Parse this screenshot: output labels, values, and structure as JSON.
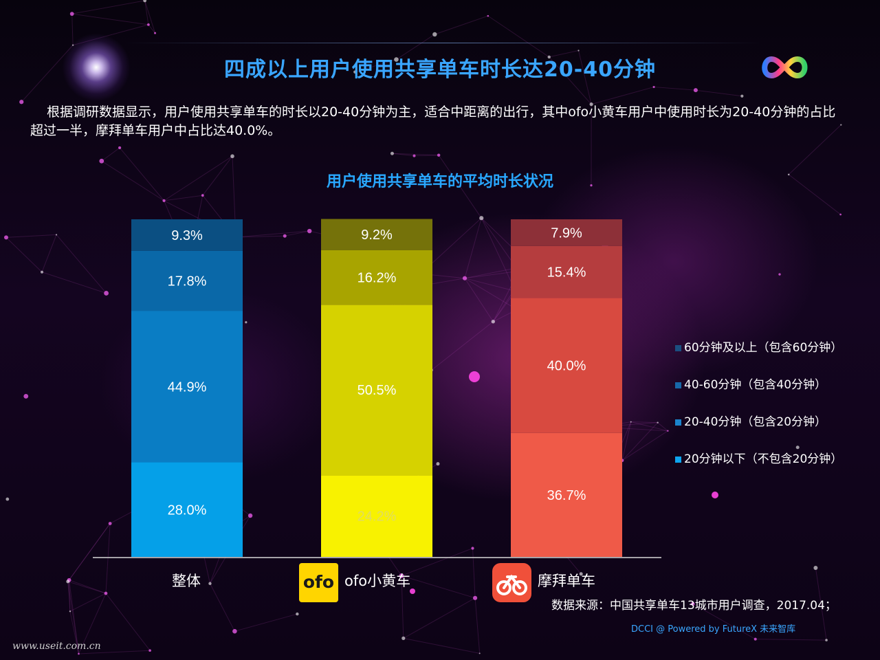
{
  "header": {
    "title": "四成以上用户使用共享单车时长达20-40分钟"
  },
  "description": "根据调研数据显示，用户使用共享单车的时长以20-40分钟为主，适合中距离的出行，其中ofo小黄车用户中使用时长为20-40分钟的占比超过一半，摩拜单车用户中占比达40.0%。",
  "chart_data": {
    "type": "bar",
    "stacked": true,
    "title": "用户使用共享单车的平均时长状况",
    "categories": [
      "整体",
      "ofo小黄车",
      "摩拜单车"
    ],
    "ylim": [
      0,
      100
    ],
    "unit": "%",
    "legend_position": "right",
    "series": [
      {
        "name": "20分钟以下（不包含20分钟）",
        "values": [
          28.0,
          24.2,
          36.7
        ],
        "labels": [
          "28.0%",
          "24.2%",
          "36.7%"
        ]
      },
      {
        "name": "20-40分钟（包含20分钟）",
        "values": [
          44.9,
          50.5,
          40.0
        ],
        "labels": [
          "44.9%",
          "50.5%",
          "40.0%"
        ]
      },
      {
        "name": "40-60分钟（包含40分钟）",
        "values": [
          17.8,
          16.2,
          15.4
        ],
        "labels": [
          "17.8%",
          "16.2%",
          "15.4%"
        ]
      },
      {
        "name": "60分钟及以上（包含60分钟）",
        "values": [
          9.3,
          9.2,
          7.9
        ],
        "labels": [
          "9.3%",
          "9.2%",
          "7.9%"
        ]
      }
    ],
    "category_colors": [
      [
        "#05a0e8",
        "#0a7dc4",
        "#0a68a8",
        "#0b4f82"
      ],
      [
        "#f8f200",
        "#d6d200",
        "#a8a400",
        "#75720a"
      ],
      [
        "#ef5a48",
        "#d84a40",
        "#b53d3e",
        "#8d3038"
      ]
    ],
    "legend_swatch_colors": [
      "#0ea5ef",
      "#1b84cc",
      "#1768a8",
      "#1b4f80"
    ]
  },
  "logos": {
    "ofo_text": "ofo"
  },
  "source": "数据来源：中国共享单车13城市用户调查，2017.04；",
  "footer": "DCCI @ Powered by FutureX 未来智库",
  "watermark": "www.useit.com.cn"
}
